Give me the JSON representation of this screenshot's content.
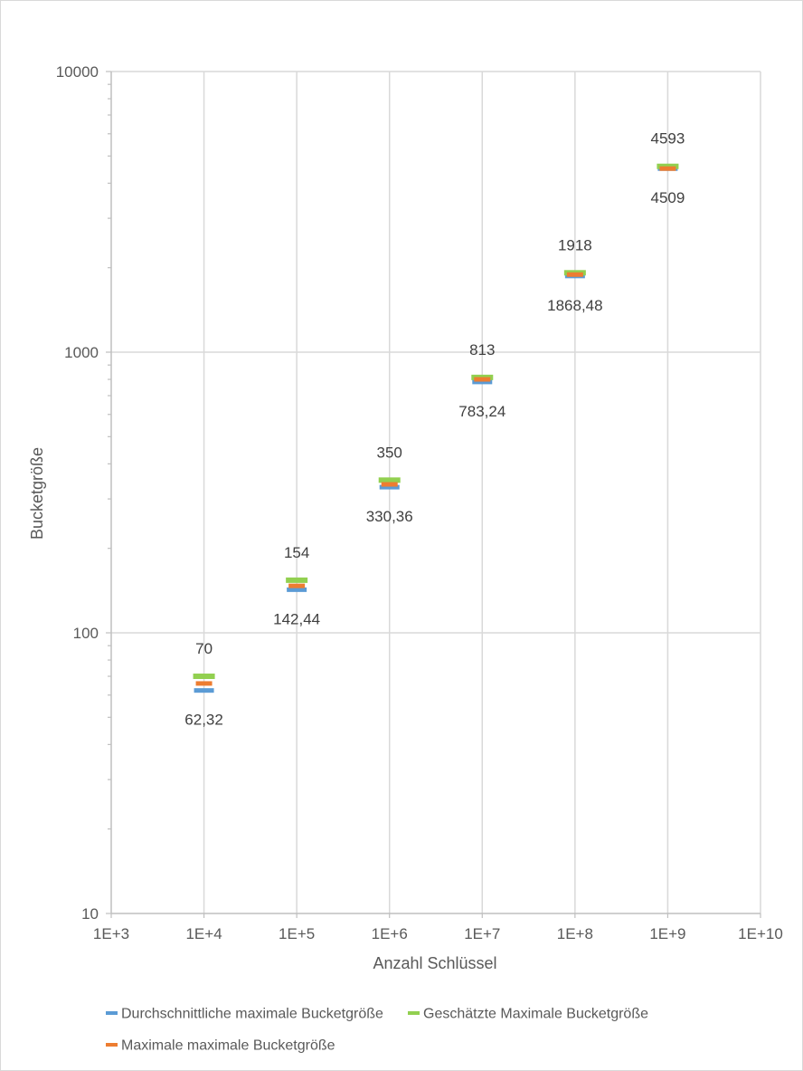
{
  "chart_data": {
    "type": "scatter",
    "xlabel": "Anzahl Schlüssel",
    "ylabel": "Bucketgröße",
    "x_scale": "log",
    "y_scale": "log",
    "xlim": [
      1000,
      10000000000
    ],
    "ylim": [
      10,
      10000
    ],
    "x_ticks": [
      {
        "value": 1000,
        "label": "1E+3"
      },
      {
        "value": 10000,
        "label": "1E+4"
      },
      {
        "value": 100000,
        "label": "1E+5"
      },
      {
        "value": 1000000,
        "label": "1E+6"
      },
      {
        "value": 10000000,
        "label": "1E+7"
      },
      {
        "value": 100000000,
        "label": "1E+8"
      },
      {
        "value": 1000000000,
        "label": "1E+9"
      },
      {
        "value": 10000000000,
        "label": "1E+10"
      }
    ],
    "y_ticks": [
      {
        "value": 10,
        "label": "10"
      },
      {
        "value": 100,
        "label": "100"
      },
      {
        "value": 1000,
        "label": "1000"
      },
      {
        "value": 10000,
        "label": "10000"
      }
    ],
    "grid": true,
    "legend_position": "bottom",
    "marker": "dash",
    "series": [
      {
        "name": "Durchschnittliche maximale Bucketgröße",
        "color": "#5b9bd5",
        "x": [
          10000,
          100000,
          1000000,
          10000000,
          100000000,
          1000000000
        ],
        "y": [
          62.32,
          142.44,
          330.36,
          783.24,
          1868.48,
          4509
        ],
        "labels": [
          "62,32",
          "142,44",
          "330,36",
          "783,24",
          "1868,48",
          "4509"
        ],
        "label_position": "below"
      },
      {
        "name": "Geschätzte Maximale Bucketgröße",
        "color": "#92d050",
        "x": [
          10000,
          100000,
          1000000,
          10000000,
          100000000,
          1000000000
        ],
        "y": [
          70,
          154,
          350,
          813,
          1918,
          4593
        ],
        "labels": [
          "70",
          "154",
          "350",
          "813",
          "1918",
          "4593"
        ],
        "label_position": "above"
      },
      {
        "name": "Maximale maximale Bucketgröße",
        "color": "#ed7d31",
        "x": [
          10000,
          100000,
          1000000,
          10000000,
          100000000,
          1000000000
        ],
        "y": [
          66,
          147,
          338,
          800,
          1890,
          4509
        ]
      }
    ]
  }
}
